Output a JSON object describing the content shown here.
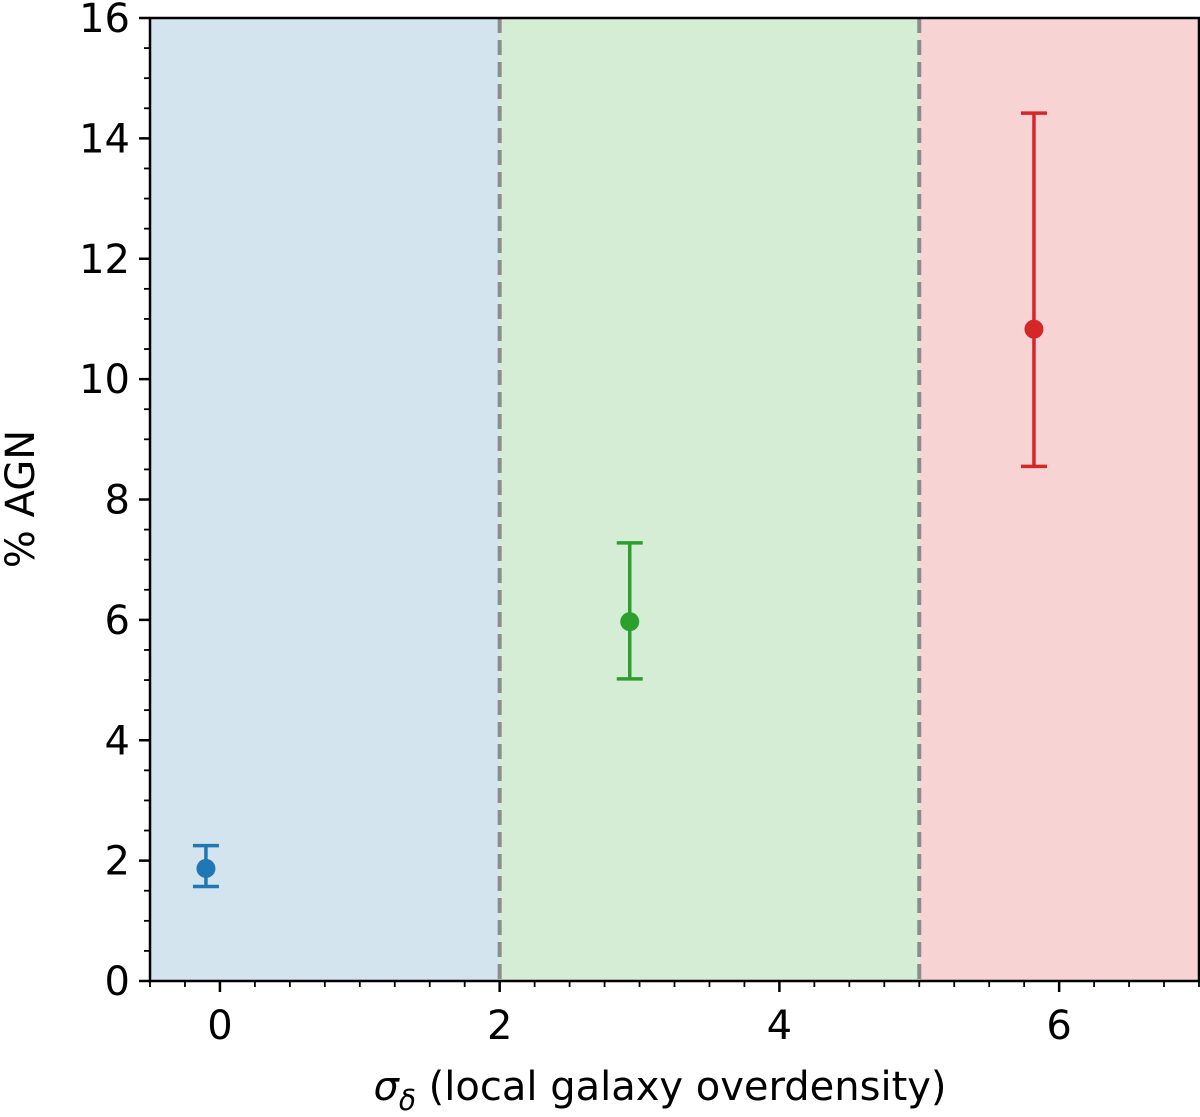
{
  "chart_data": {
    "type": "scatter",
    "xlabel": "σ_δ (local galaxy overdensity)",
    "xlabel_parts": {
      "symbol": "σ",
      "subscript": "δ",
      "rest": " (local galaxy overdensity)"
    },
    "ylabel": "% AGN",
    "xlim": [
      -0.5,
      7.0
    ],
    "ylim": [
      0,
      16
    ],
    "x_ticks": [
      0,
      2,
      4,
      6
    ],
    "x_tick_labels": [
      "0",
      "2",
      "4",
      "6"
    ],
    "y_ticks": [
      0,
      2,
      4,
      6,
      8,
      10,
      12,
      14,
      16
    ],
    "y_tick_labels": [
      "0",
      "2",
      "4",
      "6",
      "8",
      "10",
      "12",
      "14",
      "16"
    ],
    "x_minor_step": 0.25,
    "y_minor_step": 0.5,
    "grid": false,
    "regions": [
      {
        "x_start": -0.5,
        "x_end": 2.0,
        "color": "#d3e4ef"
      },
      {
        "x_start": 2.0,
        "x_end": 5.0,
        "color": "#d5ecd5"
      },
      {
        "x_start": 5.0,
        "x_end": 7.0,
        "color": "#f7d3d4"
      }
    ],
    "vlines": [
      {
        "x": 2.0,
        "color": "#8c8c8c",
        "style": "dashed"
      },
      {
        "x": 5.0,
        "color": "#8c8c8c",
        "style": "dashed"
      }
    ],
    "points": [
      {
        "x": -0.1,
        "y": 1.87,
        "y_low": 1.57,
        "y_high": 2.25,
        "color": "#1f77b4"
      },
      {
        "x": 2.93,
        "y": 5.97,
        "y_low": 5.02,
        "y_high": 7.28,
        "color": "#2ca02c"
      },
      {
        "x": 5.82,
        "y": 10.83,
        "y_low": 8.55,
        "y_high": 14.42,
        "color": "#d62728"
      }
    ]
  }
}
